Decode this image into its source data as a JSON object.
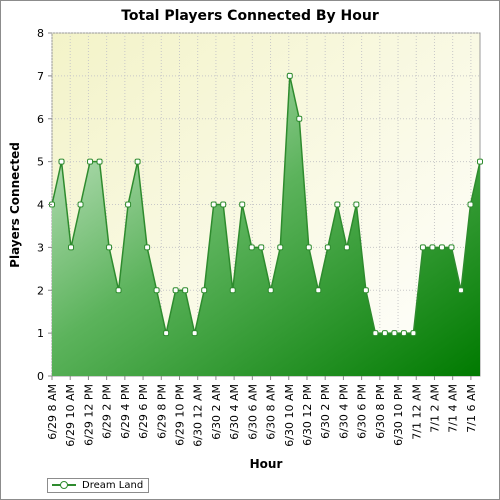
{
  "chart_data": {
    "type": "area",
    "title": "Total Players Connected By Hour",
    "xlabel": "Hour",
    "ylabel": "Players Connected",
    "ylim": [
      0,
      8
    ],
    "y_ticks": [
      "0",
      "1",
      "2",
      "3",
      "4",
      "5",
      "6",
      "7",
      "8"
    ],
    "x_tick_labels": [
      "6/29 8 AM",
      "6/29 10 AM",
      "6/29 12 PM",
      "6/29 2 PM",
      "6/29 4 PM",
      "6/29 6 PM",
      "6/29 8 PM",
      "6/29 10 PM",
      "6/30 12 AM",
      "6/30 2 AM",
      "6/30 4 AM",
      "6/30 6 AM",
      "6/30 8 AM",
      "6/30 10 AM",
      "6/30 12 PM",
      "6/30 2 PM",
      "6/30 4 PM",
      "6/30 6 PM",
      "6/30 8 PM",
      "6/30 10 PM",
      "7/1 12 AM",
      "7/1 2 AM",
      "7/1 4 AM",
      "7/1 6 AM"
    ],
    "series": [
      {
        "name": "Dream Land",
        "color": "#2e8b2e",
        "values": [
          4,
          5,
          3,
          4,
          5,
          5,
          3,
          2,
          4,
          5,
          3,
          2,
          1,
          2,
          2,
          1,
          2,
          4,
          4,
          2,
          4,
          3,
          3,
          2,
          3,
          7,
          6,
          3,
          2,
          3,
          4,
          3,
          4,
          2,
          1,
          1,
          1,
          1,
          1,
          3,
          3,
          3,
          3,
          2,
          4,
          5
        ]
      }
    ],
    "grid": true,
    "legend_position": "bottom-left"
  }
}
